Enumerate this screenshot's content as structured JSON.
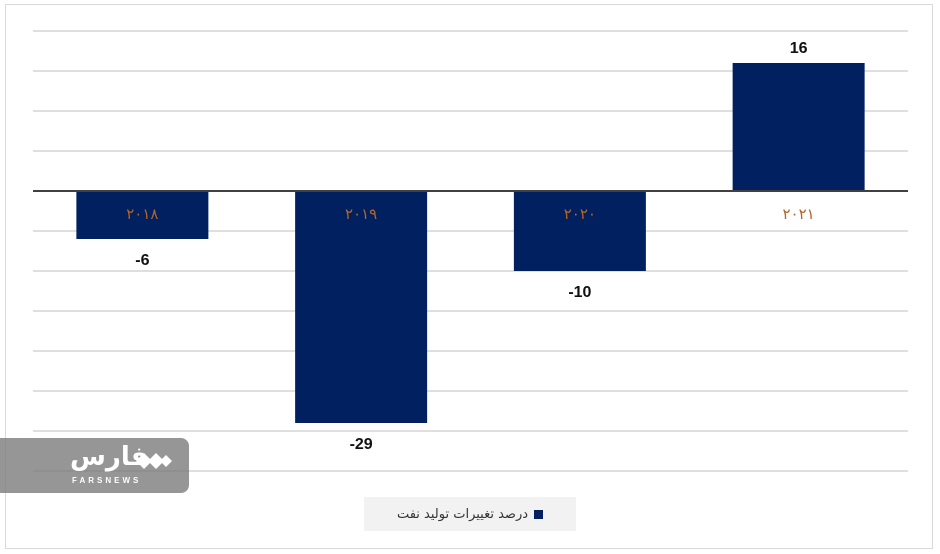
{
  "chart_data": {
    "type": "bar",
    "categories": [
      "۲۰۱۸",
      "۲۰۱۹",
      "۲۰۲۰",
      "۲۰۲۱"
    ],
    "series": [
      {
        "name": "درصد تغییرات تولید نفت",
        "values": [
          -6,
          -29,
          -10,
          16
        ]
      }
    ],
    "value_labels": [
      "-6",
      "-29",
      "-10",
      "16"
    ],
    "ylim": [
      -35,
      20
    ],
    "grid": true,
    "legend_position": "bottom",
    "colors": {
      "bar": "#002060",
      "category_label": "#b4652a",
      "gridline": "#bfbfbf",
      "axis": "#404040"
    }
  },
  "legend": {
    "label": "درصد تغییرات تولید نفت"
  },
  "watermark": {
    "brand": "فارس",
    "brand_latin": "FARSNEWS"
  }
}
